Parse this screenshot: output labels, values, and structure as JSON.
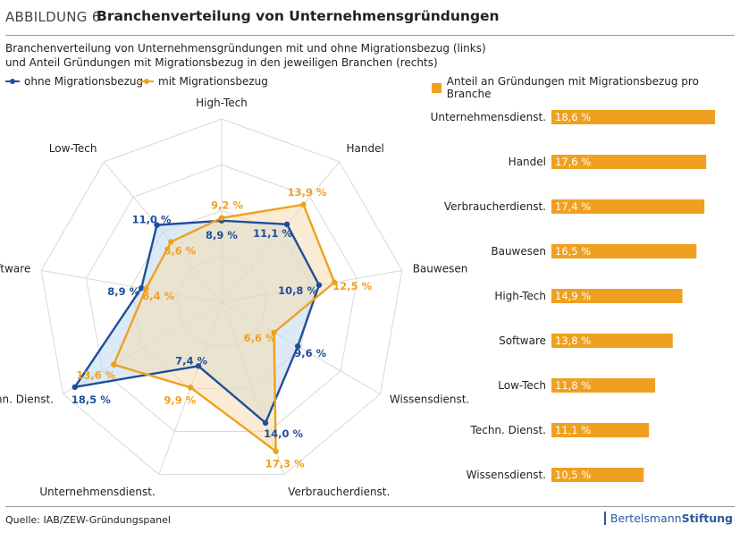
{
  "header": {
    "label": "ABBILDUNG 6",
    "title": "Branchenverteilung von Unternehmensgründungen"
  },
  "subtitle": {
    "line1": "Branchenverteilung von Unternehmensgründungen mit und ohne Migrationsbezug (links)",
    "line2": "und Anteil Gründungen mit Migrationsbezug in den jeweiligen Branchen (rechts)"
  },
  "legend": {
    "ohne": "ohne Migrationsbezug",
    "mit": "mit Migrationsbezug",
    "anteil": "Anteil an Gründungen mit Migrationsbezug pro Branche"
  },
  "colors": {
    "ohne": "#1f4e99",
    "mit": "#f0a020",
    "ohne_fill": "#bfd8ee",
    "mit_fill": "#f6ddb0",
    "grid": "#d8d8d8",
    "bar": "#f0a020"
  },
  "chart_data": [
    {
      "type": "radar",
      "axes": [
        "High-Tech",
        "Handel",
        "Bauwesen",
        "Wissensdienst.",
        "Verbraucherdienst.",
        "Unternehmensdienst.",
        "Techn. Dienst.",
        "Software",
        "Low-Tech"
      ],
      "rmax": 20,
      "series": [
        {
          "name": "ohne Migrationsbezug",
          "values": [
            8.9,
            11.1,
            10.8,
            9.6,
            14.0,
            7.4,
            18.5,
            8.9,
            11.0
          ],
          "labels": [
            "8,9 %",
            "11,1 %",
            "10,8 %",
            "9,6 %",
            "14,0 %",
            "7,4 %",
            "18,5 %",
            "8,9 %",
            "11,0 %"
          ]
        },
        {
          "name": "mit Migrationsbezug",
          "values": [
            9.2,
            13.9,
            12.5,
            6.6,
            17.3,
            9.9,
            13.6,
            8.4,
            8.6
          ],
          "labels": [
            "9,2 %",
            "13,9 %",
            "12,5 %",
            "6,6 %",
            "17,3 %",
            "9,9 %",
            "13,6 %",
            "8,4 %",
            "8,6 %"
          ]
        }
      ]
    },
    {
      "type": "bar",
      "orientation": "horizontal",
      "categories": [
        "Unternehmensdienst.",
        "Handel",
        "Verbraucherdienst.",
        "Bauwesen",
        "High-Tech",
        "Software",
        "Low-Tech",
        "Techn. Dienst.",
        "Wissensdienst."
      ],
      "values": [
        18.6,
        17.6,
        17.4,
        16.5,
        14.9,
        13.8,
        11.8,
        11.1,
        10.5
      ],
      "labels": [
        "18,6 %",
        "17,6 %",
        "17,4 %",
        "16,5 %",
        "14,9 %",
        "13,8 %",
        "11,8 %",
        "11,1 %",
        "10,5 %"
      ],
      "series_name": "Anteil an Gründungen mit Migrationsbezug pro Branche"
    }
  ],
  "footer": {
    "source": "Quelle: IAB/ZEW-Gründungspanel",
    "brand_a": "Bertelsmann",
    "brand_b": "Stiftung"
  }
}
